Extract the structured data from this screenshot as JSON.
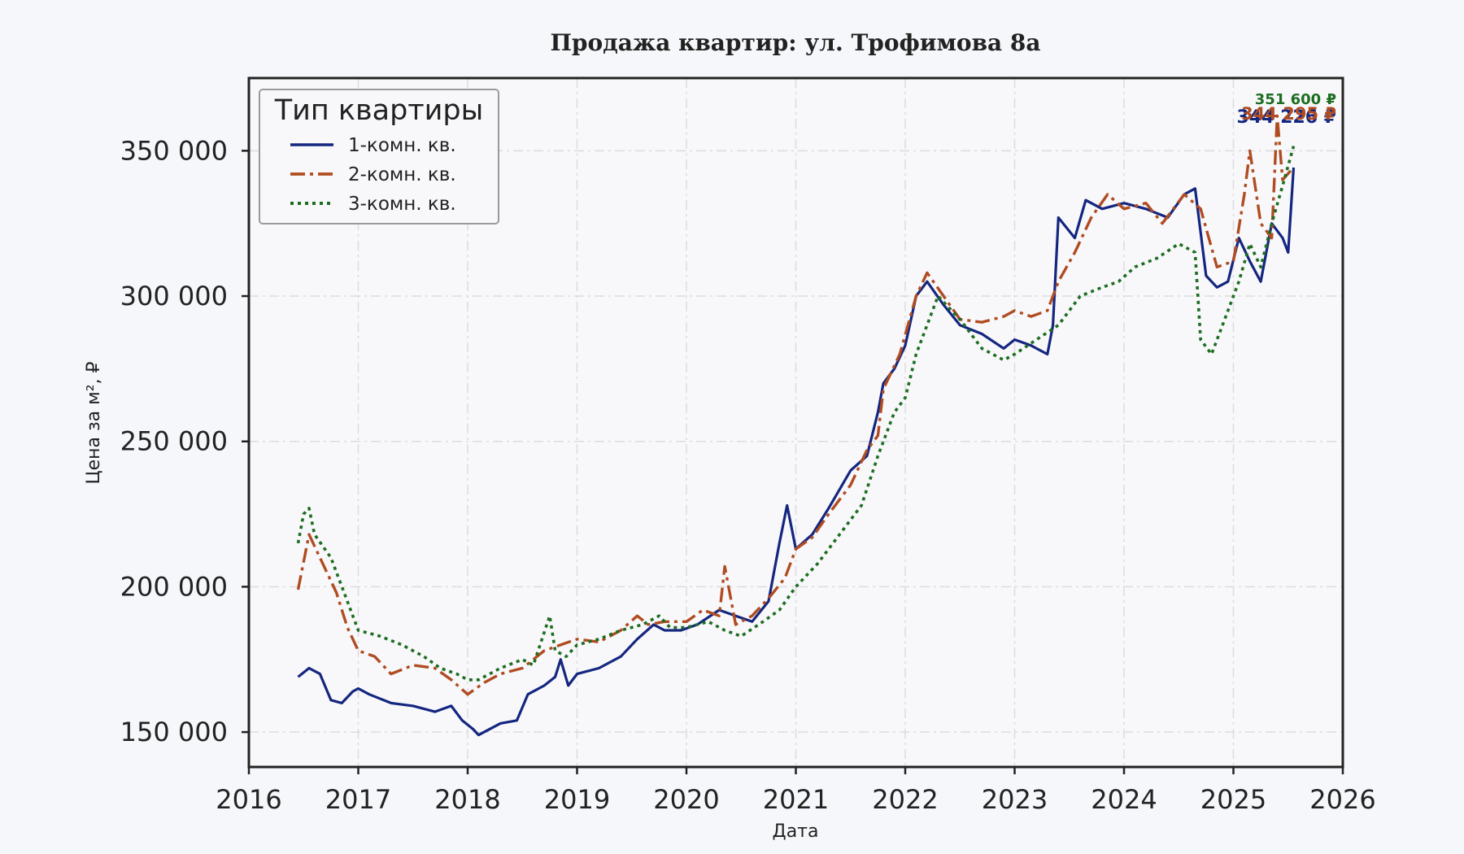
{
  "chart_data": {
    "type": "line",
    "title": "Продажа квартир: ул. Трофимова 8а",
    "xlabel": "Дата",
    "ylabel": "Цена за м², ₽",
    "xlim": [
      2016.0,
      2026.0
    ],
    "ylim": [
      138000,
      375000
    ],
    "x_ticks": [
      2016,
      2017,
      2018,
      2019,
      2020,
      2021,
      2022,
      2023,
      2024,
      2025,
      2026
    ],
    "x_tick_labels": [
      "2016",
      "2017",
      "2018",
      "2019",
      "2020",
      "2021",
      "2022",
      "2023",
      "2024",
      "2025",
      "2026"
    ],
    "y_ticks": [
      150000,
      200000,
      250000,
      300000,
      350000
    ],
    "y_tick_labels": [
      "150 000",
      "200 000",
      "250 000",
      "300 000",
      "350 000"
    ],
    "grid": true,
    "legend": {
      "title": "Тип квартиры",
      "position": "upper-left"
    },
    "series": [
      {
        "name": "1-комн. кв.",
        "color": "#14267f",
        "dash": "solid",
        "end_label": "344 226 ₽",
        "x": [
          2016.45,
          2016.55,
          2016.65,
          2016.75,
          2016.85,
          2016.95,
          2017.0,
          2017.1,
          2017.3,
          2017.5,
          2017.7,
          2017.85,
          2017.95,
          2018.05,
          2018.1,
          2018.3,
          2018.45,
          2018.55,
          2018.7,
          2018.8,
          2018.85,
          2018.92,
          2019.0,
          2019.2,
          2019.4,
          2019.55,
          2019.7,
          2019.8,
          2019.95,
          2020.1,
          2020.3,
          2020.45,
          2020.6,
          2020.75,
          2020.85,
          2020.92,
          2021.0,
          2021.15,
          2021.3,
          2021.5,
          2021.65,
          2021.75,
          2021.8,
          2021.9,
          2022.0,
          2022.1,
          2022.2,
          2022.35,
          2022.5,
          2022.7,
          2022.9,
          2023.0,
          2023.15,
          2023.3,
          2023.35,
          2023.4,
          2023.55,
          2023.65,
          2023.8,
          2024.0,
          2024.2,
          2024.4,
          2024.55,
          2024.65,
          2024.75,
          2024.85,
          2024.95,
          2025.05,
          2025.15,
          2025.25,
          2025.35,
          2025.45,
          2025.5,
          2025.55
        ],
        "y": [
          169000,
          172000,
          170000,
          161000,
          160000,
          164000,
          165000,
          163000,
          160000,
          159000,
          157000,
          159000,
          154000,
          151000,
          149000,
          153000,
          154000,
          163000,
          166000,
          169000,
          175000,
          166000,
          170000,
          172000,
          176000,
          182000,
          187000,
          185000,
          185000,
          187000,
          192000,
          190000,
          188000,
          195000,
          215000,
          228000,
          213000,
          218000,
          227000,
          240000,
          245000,
          260000,
          270000,
          275000,
          283000,
          300000,
          305000,
          297000,
          290000,
          287000,
          282000,
          285000,
          283000,
          280000,
          290000,
          327000,
          320000,
          333000,
          330000,
          332000,
          330000,
          327000,
          335000,
          337000,
          307000,
          303000,
          305000,
          320000,
          312000,
          305000,
          325000,
          320000,
          315000,
          344226
        ]
      },
      {
        "name": "2-комн. кв.",
        "color": "#b04c22",
        "dash": "dashdot",
        "end_label": "344 295 ₽",
        "x": [
          2016.45,
          2016.55,
          2016.65,
          2016.8,
          2016.9,
          2017.0,
          2017.15,
          2017.3,
          2017.5,
          2017.7,
          2017.85,
          2018.0,
          2018.15,
          2018.3,
          2018.5,
          2018.7,
          2018.85,
          2019.0,
          2019.2,
          2019.4,
          2019.55,
          2019.65,
          2019.8,
          2020.0,
          2020.15,
          2020.3,
          2020.35,
          2020.45,
          2020.6,
          2020.75,
          2020.9,
          2021.0,
          2021.15,
          2021.3,
          2021.5,
          2021.65,
          2021.75,
          2021.8,
          2021.95,
          2022.1,
          2022.2,
          2022.35,
          2022.5,
          2022.7,
          2022.9,
          2023.0,
          2023.15,
          2023.3,
          2023.4,
          2023.55,
          2023.7,
          2023.85,
          2024.0,
          2024.2,
          2024.35,
          2024.55,
          2024.7,
          2024.85,
          2025.0,
          2025.1,
          2025.15,
          2025.25,
          2025.35,
          2025.4,
          2025.45,
          2025.55
        ],
        "y": [
          199000,
          218000,
          210000,
          198000,
          186000,
          178000,
          176000,
          170000,
          173000,
          172000,
          168000,
          163000,
          167000,
          170000,
          172000,
          178000,
          180000,
          182000,
          181000,
          185000,
          190000,
          187000,
          188000,
          188000,
          192000,
          190000,
          207000,
          187000,
          190000,
          196000,
          203000,
          213000,
          217000,
          225000,
          235000,
          247000,
          252000,
          268000,
          280000,
          300000,
          308000,
          300000,
          292000,
          291000,
          293000,
          295000,
          293000,
          295000,
          305000,
          315000,
          327000,
          335000,
          330000,
          332000,
          325000,
          335000,
          330000,
          310000,
          312000,
          335000,
          350000,
          325000,
          320000,
          362000,
          340000,
          344295
        ]
      },
      {
        "name": "3-комн. кв.",
        "color": "#1e6e22",
        "dash": "dotted",
        "end_label": "351 600 ₽",
        "x": [
          2016.45,
          2016.5,
          2016.55,
          2016.6,
          2016.75,
          2016.9,
          2016.95,
          2017.0,
          2017.2,
          2017.4,
          2017.6,
          2017.75,
          2017.9,
          2018.0,
          2018.1,
          2018.3,
          2018.5,
          2018.6,
          2018.75,
          2018.8,
          2018.9,
          2019.0,
          2019.2,
          2019.4,
          2019.6,
          2019.75,
          2019.85,
          2020.0,
          2020.2,
          2020.35,
          2020.5,
          2020.7,
          2020.85,
          2021.0,
          2021.2,
          2021.4,
          2021.6,
          2021.75,
          2021.9,
          2022.0,
          2022.1,
          2022.3,
          2022.5,
          2022.7,
          2022.9,
          2023.0,
          2023.2,
          2023.4,
          2023.6,
          2023.8,
          2023.95,
          2024.1,
          2024.3,
          2024.5,
          2024.65,
          2024.7,
          2024.8,
          2024.9,
          2025.05,
          2025.15,
          2025.25,
          2025.35,
          2025.45,
          2025.55
        ],
        "y": [
          215000,
          225000,
          227000,
          218000,
          210000,
          195000,
          190000,
          185000,
          183000,
          180000,
          176000,
          172000,
          170000,
          168000,
          168000,
          172000,
          175000,
          173000,
          190000,
          178000,
          176000,
          180000,
          182000,
          185000,
          187000,
          190000,
          186000,
          186000,
          188000,
          185000,
          183000,
          188000,
          192000,
          200000,
          208000,
          218000,
          228000,
          245000,
          260000,
          265000,
          280000,
          300000,
          292000,
          282000,
          278000,
          280000,
          285000,
          290000,
          300000,
          303000,
          305000,
          310000,
          313000,
          318000,
          315000,
          285000,
          280000,
          290000,
          305000,
          318000,
          310000,
          325000,
          338000,
          351600
        ]
      }
    ]
  }
}
